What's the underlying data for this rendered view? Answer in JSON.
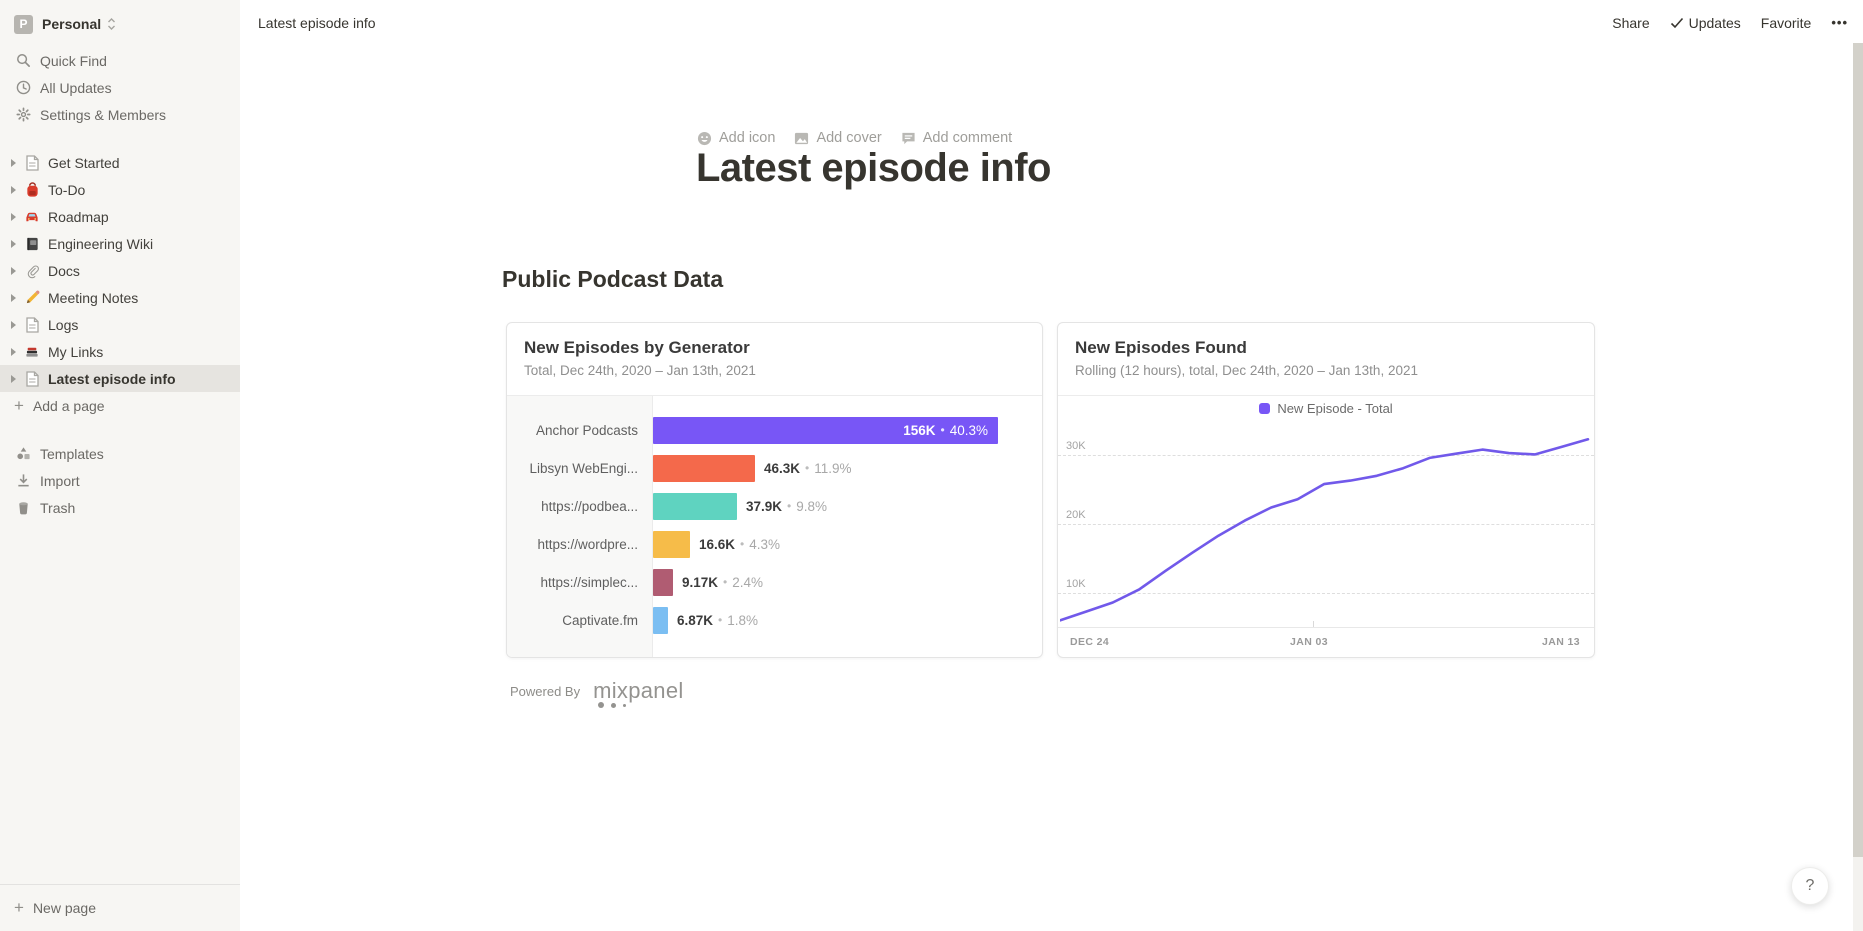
{
  "workspace": {
    "name": "Personal",
    "avatar_letter": "P"
  },
  "sidebar": {
    "top_items": [
      {
        "label": "Quick Find",
        "icon": "search-icon"
      },
      {
        "label": "All Updates",
        "icon": "clock-icon"
      },
      {
        "label": "Settings & Members",
        "icon": "gear-icon"
      }
    ],
    "pages": [
      {
        "label": "Get Started",
        "icon": "page-icon",
        "selected": false
      },
      {
        "label": "To-Do",
        "icon": "backpack-icon",
        "selected": false
      },
      {
        "label": "Roadmap",
        "icon": "car-icon",
        "selected": false
      },
      {
        "label": "Engineering Wiki",
        "icon": "notebook-icon",
        "selected": false
      },
      {
        "label": "Docs",
        "icon": "paperclip-icon",
        "selected": false
      },
      {
        "label": "Meeting Notes",
        "icon": "pencil-icon",
        "selected": false
      },
      {
        "label": "Logs",
        "icon": "page-icon",
        "selected": false
      },
      {
        "label": "My Links",
        "icon": "books-icon",
        "selected": false
      },
      {
        "label": "Latest episode info",
        "icon": "page-icon",
        "selected": true
      }
    ],
    "add_page_label": "Add a page",
    "footer_items": [
      {
        "label": "Templates",
        "icon": "templates-icon"
      },
      {
        "label": "Import",
        "icon": "import-icon"
      },
      {
        "label": "Trash",
        "icon": "trash-icon"
      }
    ],
    "new_page_label": "New page"
  },
  "topbar": {
    "breadcrumb": "Latest episode info",
    "share_label": "Share",
    "updates_label": "Updates",
    "favorite_label": "Favorite",
    "more_label": "•••"
  },
  "page": {
    "add_icon_label": "Add icon",
    "add_cover_label": "Add cover",
    "add_comment_label": "Add comment",
    "title": "Latest episode info",
    "section_heading": "Public Podcast Data",
    "powered_by_label": "Powered By",
    "powered_by_brand": "mixpanel",
    "help_label": "?"
  },
  "chart_data": [
    {
      "type": "bar",
      "title": "New Episodes by Generator",
      "subtitle": "Total, Dec 24th, 2020 – Jan 13th, 2021",
      "orientation": "horizontal",
      "rows": [
        {
          "category": "Anchor Podcasts",
          "value": 156000,
          "value_label": "156K",
          "percent_label": "40.3%",
          "color": "#7856F6",
          "label_inside": true
        },
        {
          "category": "Libsyn WebEngi...",
          "value": 46300,
          "value_label": "46.3K",
          "percent_label": "11.9%",
          "color": "#F4694B",
          "label_inside": false
        },
        {
          "category": "https://podbea...",
          "value": 37900,
          "value_label": "37.9K",
          "percent_label": "9.8%",
          "color": "#5FD3C0",
          "label_inside": false
        },
        {
          "category": "https://wordpre...",
          "value": 16600,
          "value_label": "16.6K",
          "percent_label": "4.3%",
          "color": "#F6BC49",
          "label_inside": false
        },
        {
          "category": "https://simplec...",
          "value": 9170,
          "value_label": "9.17K",
          "percent_label": "2.4%",
          "color": "#B05C72",
          "label_inside": false
        },
        {
          "category": "Captivate.fm",
          "value": 6870,
          "value_label": "6.87K",
          "percent_label": "1.8%",
          "color": "#7BBEF2",
          "label_inside": false
        }
      ]
    },
    {
      "type": "line",
      "title": "New Episodes Found",
      "subtitle": "Rolling (12 hours), total, Dec 24th, 2020 – Jan 13th, 2021",
      "legend": [
        {
          "label": "New Episode - Total",
          "color": "#7856F6"
        }
      ],
      "line_color": "#7159EA",
      "grid": "horizontal-dashed",
      "x_range": [
        "Dec 24",
        "Jan 13"
      ],
      "x_tick_labels": [
        "DEC 24",
        "JAN 03",
        "JAN 13"
      ],
      "y_ticks": [
        {
          "label": "10K",
          "k": 10
        },
        {
          "label": "20K",
          "k": 20
        },
        {
          "label": "30K",
          "k": 30
        }
      ],
      "ylim_k": [
        4.9,
        35.1
      ],
      "values_k": [
        6.0,
        7.3,
        8.6,
        10.5,
        13.2,
        15.8,
        18.3,
        20.5,
        22.4,
        23.6,
        25.8,
        26.3,
        27.0,
        28.1,
        29.6,
        30.2,
        30.8,
        30.3,
        30.1,
        31.2,
        32.3
      ]
    }
  ]
}
